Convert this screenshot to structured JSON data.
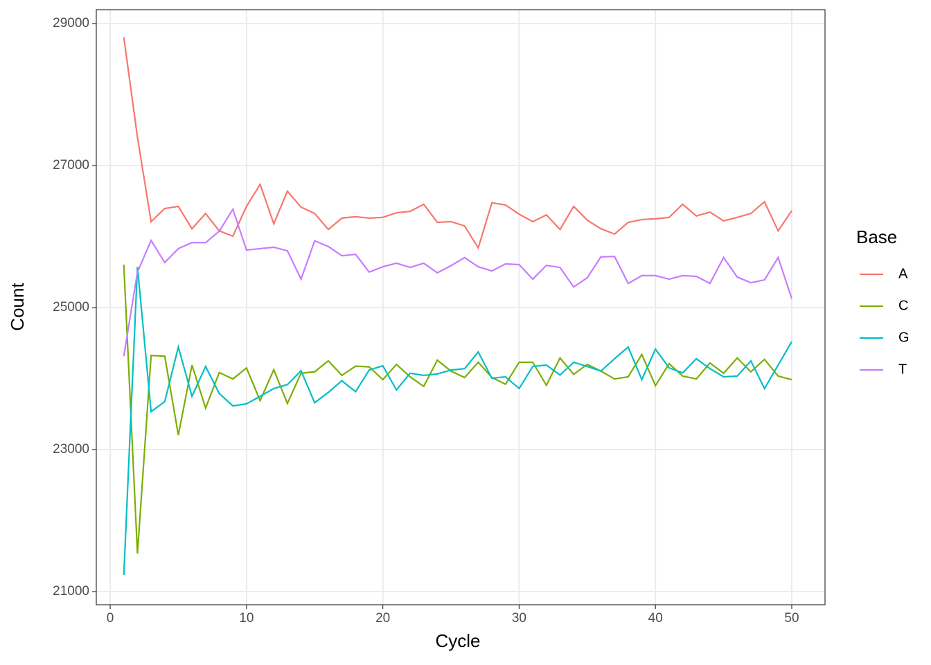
{
  "chart_data": {
    "type": "line",
    "x_label": "Cycle",
    "y_label": "Count",
    "legend_title": "Base",
    "x": [
      1,
      2,
      3,
      4,
      5,
      6,
      7,
      8,
      9,
      10,
      11,
      12,
      13,
      14,
      15,
      16,
      17,
      18,
      19,
      20,
      21,
      22,
      23,
      24,
      25,
      26,
      27,
      28,
      29,
      30,
      31,
      32,
      33,
      34,
      35,
      36,
      37,
      38,
      39,
      40,
      41,
      42,
      43,
      44,
      45,
      46,
      47,
      48,
      49,
      50
    ],
    "series": [
      {
        "name": "A",
        "color": "#F8766D",
        "values": [
          28805,
          27400,
          26210,
          26395,
          26425,
          26110,
          26325,
          26080,
          26005,
          26425,
          26735,
          26180,
          26640,
          26415,
          26325,
          26100,
          26260,
          26280,
          26260,
          26270,
          26335,
          26355,
          26455,
          26200,
          26210,
          26150,
          25840,
          26475,
          26445,
          26315,
          26210,
          26305,
          26100,
          26425,
          26230,
          26110,
          26035,
          26200,
          26240,
          26250,
          26270,
          26455,
          26290,
          26345,
          26220,
          26270,
          26325,
          26490,
          26080,
          26365
        ]
      },
      {
        "name": "C",
        "color": "#7CAE00",
        "values": [
          25605,
          21535,
          24325,
          24315,
          23205,
          24190,
          23585,
          24085,
          23995,
          24150,
          23690,
          24125,
          23650,
          24075,
          24095,
          24250,
          24045,
          24175,
          24165,
          23985,
          24200,
          24025,
          23890,
          24260,
          24105,
          24015,
          24230,
          24015,
          23920,
          24230,
          24230,
          23905,
          24290,
          24060,
          24200,
          24105,
          23995,
          24025,
          24340,
          23900,
          24210,
          24035,
          23995,
          24220,
          24075,
          24290,
          24095,
          24270,
          24035,
          23985
        ]
      },
      {
        "name": "G",
        "color": "#00BFC4",
        "values": [
          21235,
          25575,
          23535,
          23675,
          24445,
          23750,
          24170,
          23790,
          23615,
          23645,
          23750,
          23860,
          23915,
          24110,
          23660,
          23805,
          23970,
          23815,
          24120,
          24180,
          23840,
          24075,
          24045,
          24065,
          24120,
          24140,
          24375,
          24005,
          24025,
          23860,
          24170,
          24190,
          24050,
          24230,
          24170,
          24105,
          24280,
          24445,
          23985,
          24415,
          24150,
          24080,
          24280,
          24140,
          24025,
          24035,
          24250,
          23860,
          24190,
          24520
        ]
      },
      {
        "name": "T",
        "color": "#C77CFF",
        "values": [
          24315,
          25500,
          25945,
          25635,
          25830,
          25915,
          25915,
          26075,
          26385,
          25810,
          25830,
          25850,
          25800,
          25400,
          25940,
          25860,
          25730,
          25750,
          25500,
          25575,
          25625,
          25565,
          25625,
          25490,
          25590,
          25705,
          25575,
          25515,
          25615,
          25605,
          25400,
          25595,
          25565,
          25290,
          25420,
          25715,
          25720,
          25340,
          25450,
          25450,
          25400,
          25450,
          25440,
          25340,
          25705,
          25430,
          25350,
          25390,
          25705,
          25125
        ]
      }
    ],
    "xlim": [
      -1.02,
      52.44
    ],
    "xticks": [
      0,
      10,
      20,
      30,
      40,
      50
    ],
    "ylim": [
      20815,
      29195
    ],
    "yticks": [
      21000,
      23000,
      25000,
      27000,
      29000
    ],
    "grid": true,
    "legend": "right"
  }
}
